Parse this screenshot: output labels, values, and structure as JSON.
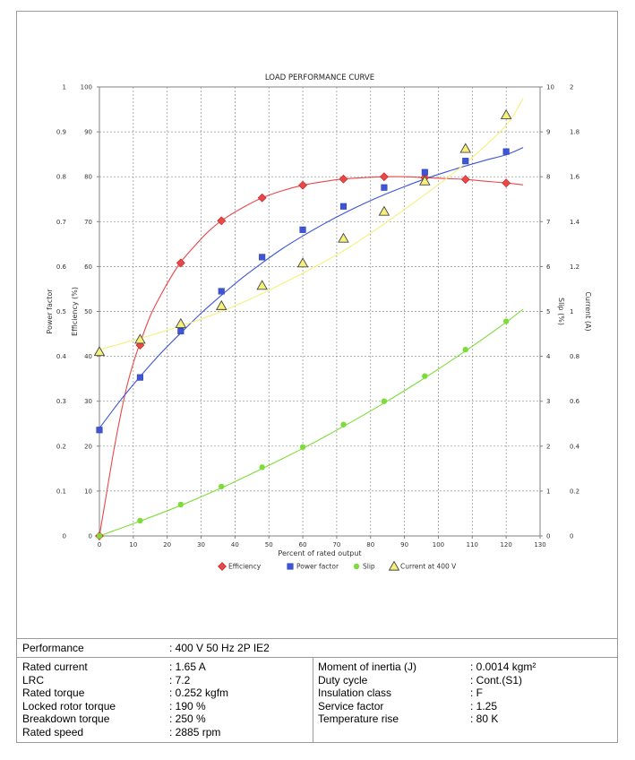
{
  "chart_data": {
    "type": "line",
    "title": "LOAD PERFORMANCE CURVE",
    "xlabel": "Percent of rated output",
    "xlim": [
      0,
      130
    ],
    "x_ticks": [
      0,
      10,
      20,
      30,
      40,
      50,
      60,
      70,
      80,
      90,
      100,
      110,
      120,
      130
    ],
    "grid": true,
    "legend_position": "bottom-center",
    "axes": {
      "power_factor": {
        "label": "Power factor",
        "side": "left-outer",
        "lim": [
          0,
          1
        ],
        "ticks": [
          "0",
          "0.1",
          "0.2",
          "0.3",
          "0.4",
          "0.5",
          "0.6",
          "0.7",
          "0.8",
          "0.9",
          "1"
        ]
      },
      "efficiency": {
        "label": "Efficiency (%)",
        "side": "left-inner",
        "lim": [
          0,
          100
        ],
        "ticks": [
          "0",
          "10",
          "20",
          "30",
          "40",
          "50",
          "60",
          "70",
          "80",
          "90",
          "100"
        ]
      },
      "slip": {
        "label": "Slip (%)",
        "side": "right-inner",
        "lim": [
          0,
          10
        ],
        "ticks": [
          "0",
          "1",
          "2",
          "3",
          "4",
          "5",
          "6",
          "7",
          "8",
          "9",
          "10"
        ]
      },
      "current": {
        "label": "Current (A)",
        "side": "right-outer",
        "lim": [
          0,
          2
        ],
        "ticks": [
          "0",
          "0.2",
          "0.4",
          "0.6",
          "0.8",
          "1",
          "1.2",
          "1.4",
          "1.6",
          "1.8",
          "2"
        ]
      }
    },
    "series": [
      {
        "name": "Efficiency",
        "axis": "efficiency",
        "color": "#e84848",
        "marker": "diamond",
        "x": [
          0,
          12,
          24,
          36,
          48,
          60,
          72,
          84,
          96,
          108,
          120
        ],
        "y": [
          0,
          42.5,
          60.8,
          70.2,
          75.3,
          78.1,
          79.5,
          80.0,
          79.8,
          79.4,
          78.6
        ],
        "curve_x": [
          0,
          2,
          4,
          6,
          8,
          10,
          12,
          15,
          18,
          21,
          24,
          28,
          32,
          36,
          42,
          48,
          54,
          60,
          66,
          72,
          78,
          84,
          90,
          96,
          102,
          108,
          114,
          120,
          125
        ],
        "curve_y": [
          0,
          9,
          18,
          26,
          33,
          38.5,
          43,
          49,
          53.5,
          57.5,
          61,
          64.5,
          67.7,
          70.2,
          73,
          75.3,
          76.9,
          78.1,
          78.9,
          79.5,
          79.8,
          80.0,
          80.0,
          79.8,
          79.6,
          79.4,
          79.0,
          78.6,
          78.2
        ]
      },
      {
        "name": "Power factor",
        "axis": "power_factor",
        "color": "#3d55d6",
        "marker": "square",
        "x": [
          0,
          12,
          24,
          36,
          48,
          60,
          72,
          84,
          96,
          108,
          120
        ],
        "y": [
          0.236,
          0.353,
          0.456,
          0.545,
          0.621,
          0.682,
          0.734,
          0.776,
          0.81,
          0.835,
          0.856
        ],
        "curve_x": [
          0,
          6,
          12,
          18,
          24,
          30,
          36,
          42,
          48,
          54,
          60,
          66,
          72,
          78,
          84,
          90,
          96,
          102,
          108,
          114,
          120,
          125
        ],
        "curve_y": [
          0.24,
          0.3,
          0.355,
          0.406,
          0.452,
          0.496,
          0.536,
          0.574,
          0.608,
          0.64,
          0.668,
          0.694,
          0.718,
          0.74,
          0.76,
          0.778,
          0.795,
          0.81,
          0.824,
          0.837,
          0.849,
          0.865
        ]
      },
      {
        "name": "Slip",
        "axis": "slip",
        "color": "#7edc3a",
        "marker": "circle",
        "x": [
          0,
          12,
          24,
          36,
          48,
          60,
          72,
          84,
          96,
          108,
          120
        ],
        "y": [
          0,
          0.34,
          0.7,
          1.1,
          1.53,
          1.98,
          2.48,
          3.0,
          3.56,
          4.15,
          4.78
        ],
        "curve_x": [
          0,
          12,
          24,
          36,
          48,
          60,
          72,
          84,
          96,
          108,
          120,
          125
        ],
        "curve_y": [
          0,
          0.33,
          0.68,
          1.07,
          1.5,
          1.95,
          2.44,
          2.96,
          3.52,
          4.12,
          4.76,
          5.05
        ]
      },
      {
        "name": "Current at 400 V",
        "axis": "current",
        "color": "#f5f07a",
        "marker": "triangle",
        "x": [
          0,
          12,
          24,
          36,
          48,
          60,
          72,
          84,
          96,
          108,
          120
        ],
        "y": [
          0.82,
          0.875,
          0.945,
          1.025,
          1.115,
          1.215,
          1.325,
          1.445,
          1.58,
          1.725,
          1.875
        ],
        "curve_x": [
          0,
          12,
          24,
          36,
          48,
          60,
          72,
          84,
          96,
          108,
          120,
          125
        ],
        "curve_y": [
          0.83,
          0.88,
          0.935,
          1.0,
          1.08,
          1.17,
          1.27,
          1.39,
          1.52,
          1.66,
          1.83,
          1.95
        ]
      }
    ]
  },
  "specs": {
    "performance_label": "Performance",
    "performance_value": ": 400 V 50 Hz 2P IE2",
    "left": [
      {
        "label": "Rated current",
        "value": ": 1.65 A"
      },
      {
        "label": "LRC",
        "value": ": 7.2"
      },
      {
        "label": "Rated torque",
        "value": ": 0.252 kgfm"
      },
      {
        "label": "Locked rotor torque",
        "value": ": 190 %"
      },
      {
        "label": "Breakdown torque",
        "value": ": 250 %"
      },
      {
        "label": "Rated speed",
        "value": ": 2885 rpm"
      }
    ],
    "right": [
      {
        "label": "Moment of inertia (J)",
        "value": ": 0.0014 kgm²"
      },
      {
        "label": "Duty cycle",
        "value": ": Cont.(S1)"
      },
      {
        "label": "Insulation class",
        "value": ": F"
      },
      {
        "label": "Service factor",
        "value": ": 1.25"
      },
      {
        "label": "Temperature rise",
        "value": ": 80 K"
      }
    ]
  }
}
